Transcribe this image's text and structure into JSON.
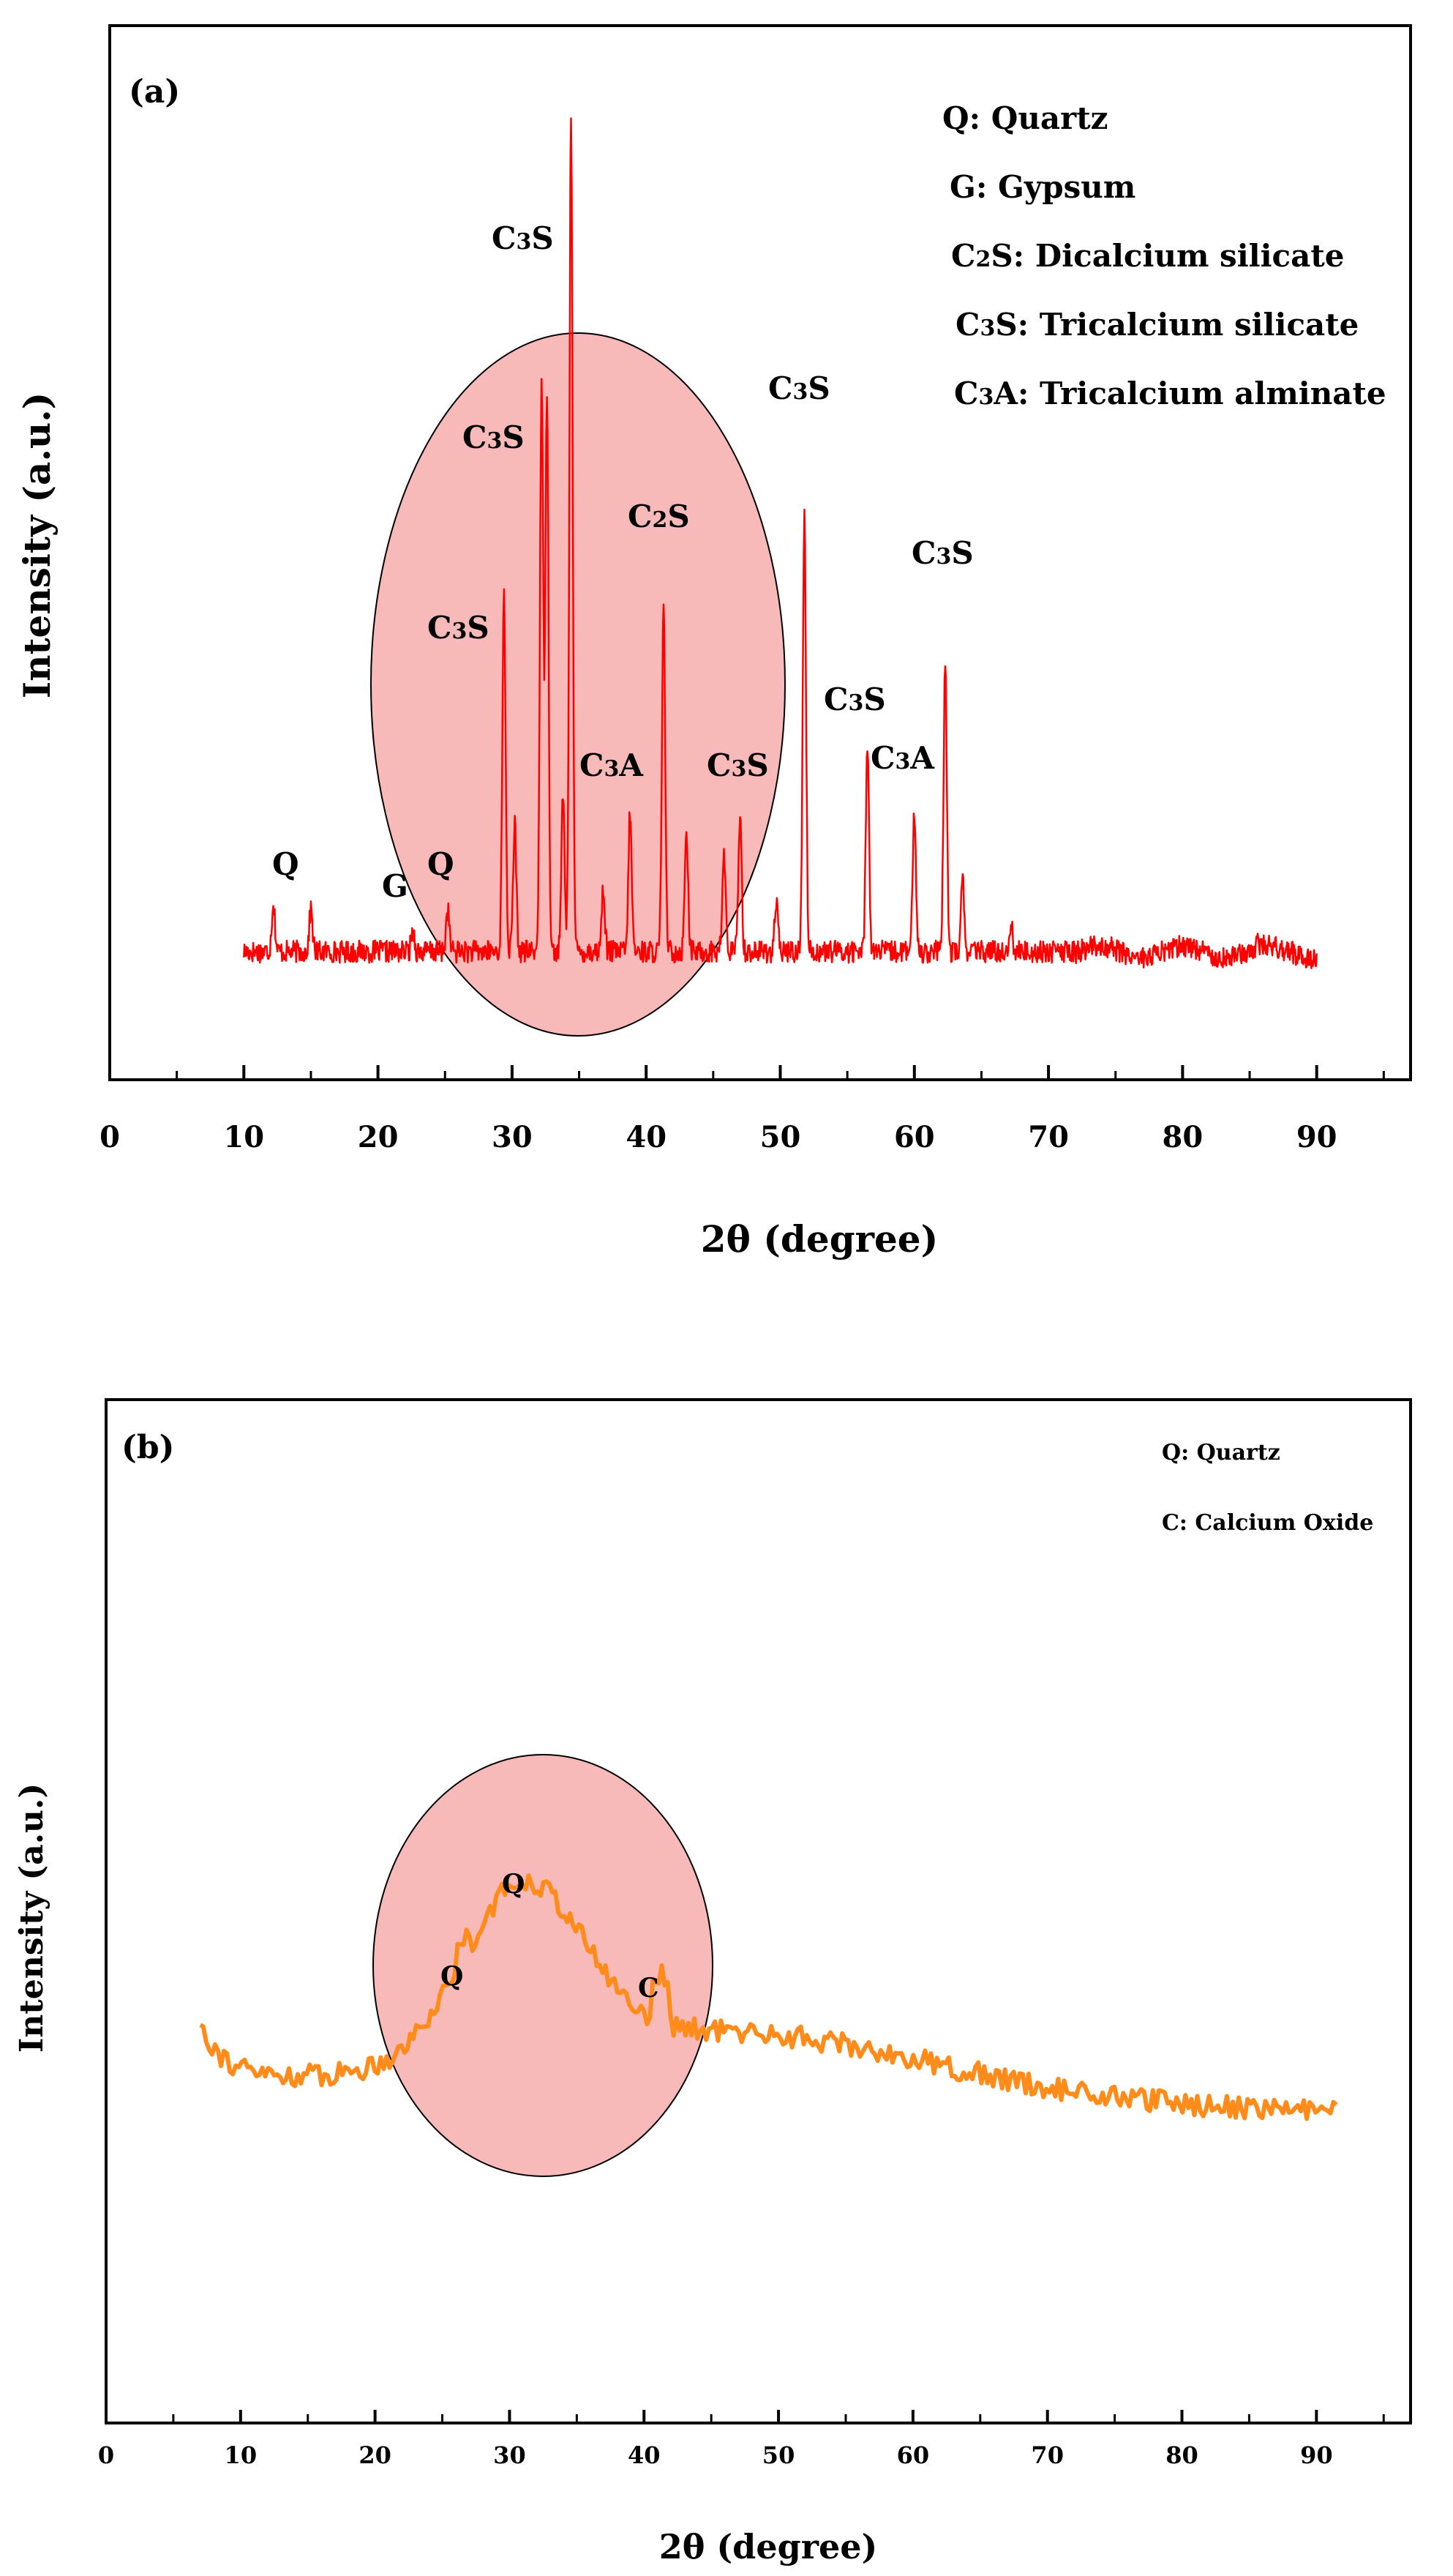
{
  "chart_data": [
    {
      "type": "line",
      "panel_label": "(a)",
      "xlabel": "2θ (degree)",
      "ylabel": "Intensity (a.u.)",
      "xlim": [
        0,
        97
      ],
      "x_ticks": [
        "0",
        "10",
        "20",
        "30",
        "40",
        "50",
        "60",
        "70",
        "80",
        "90"
      ],
      "y_ticks_shown": false,
      "grid": false,
      "legend_position": "top-right",
      "legend": [
        {
          "key": "Q",
          "desc": "Quartz"
        },
        {
          "key": "G",
          "desc": "Gypsum"
        },
        {
          "key": "C2S",
          "desc": "Dicalcium silicate"
        },
        {
          "key": "C3S",
          "desc": "Tricalcium silicate"
        },
        {
          "key": "C3A",
          "desc": "Tricalcium alminate"
        }
      ],
      "series": [
        {
          "color": "#ff0000",
          "x_range": [
            10,
            90
          ],
          "baseline": 3.0,
          "peaks": [
            {
              "x": 12.2,
              "y": 3.7
            },
            {
              "x": 15.0,
              "y": 3.6
            },
            {
              "x": 22.6,
              "y": 3.3
            },
            {
              "x": 25.2,
              "y": 3.6
            },
            {
              "x": 29.4,
              "y": 8.1
            },
            {
              "x": 30.2,
              "y": 4.8
            },
            {
              "x": 32.2,
              "y": 11.1
            },
            {
              "x": 32.6,
              "y": 11.0
            },
            {
              "x": 34.4,
              "y": 15.0
            },
            {
              "x": 33.8,
              "y": 5.2
            },
            {
              "x": 36.8,
              "y": 3.9
            },
            {
              "x": 38.8,
              "y": 5.0
            },
            {
              "x": 41.3,
              "y": 7.9
            },
            {
              "x": 43.0,
              "y": 4.8
            },
            {
              "x": 45.8,
              "y": 4.4
            },
            {
              "x": 47.0,
              "y": 5.0
            },
            {
              "x": 49.7,
              "y": 3.7
            },
            {
              "x": 51.8,
              "y": 9.3
            },
            {
              "x": 56.5,
              "y": 6.0
            },
            {
              "x": 60.0,
              "y": 5.0
            },
            {
              "x": 62.3,
              "y": 7.1
            },
            {
              "x": 63.6,
              "y": 4.0
            },
            {
              "x": 67.2,
              "y": 3.4
            },
            {
              "x": 80.0,
              "y": 3.0
            },
            {
              "x": 85.6,
              "y": 3.1
            }
          ]
        }
      ],
      "annotations": [
        {
          "text": "Q",
          "x": 13.5
        },
        {
          "text": "G",
          "x": 21.6
        },
        {
          "text": "Q",
          "x": 25.5
        },
        {
          "text": "C3S",
          "x": 28.0
        },
        {
          "text": "C3S",
          "x": 29.3
        },
        {
          "text": "C3S",
          "x": 31.5
        },
        {
          "text": "C2S",
          "x": 41.0
        },
        {
          "text": "C3A",
          "x": 38.8
        },
        {
          "text": "C3S",
          "x": 47.5
        },
        {
          "text": "C3S",
          "x": 51.5
        },
        {
          "text": "C3S",
          "x": 56.5
        },
        {
          "text": "C3A",
          "x": 60.0
        },
        {
          "text": "C3S",
          "x": 62.5
        }
      ],
      "highlight_ellipse": {
        "color": "#f8b9b9"
      }
    },
    {
      "type": "line",
      "panel_label": "(b)",
      "xlabel": "2θ (degree)",
      "ylabel": "Intensity (a.u.)",
      "xlim": [
        0,
        97
      ],
      "x_ticks": [
        "0",
        "10",
        "20",
        "30",
        "40",
        "50",
        "60",
        "70",
        "80",
        "90"
      ],
      "y_ticks_shown": false,
      "grid": false,
      "legend_position": "top-right",
      "legend": [
        {
          "key": "Q",
          "desc": "Quartz"
        },
        {
          "key": "C",
          "desc": "Calcium Oxide"
        }
      ],
      "series": [
        {
          "color": "#ff8c1a",
          "x_range": [
            7,
            91.5
          ],
          "hump_center": 31,
          "hump_height": 1.7,
          "peaks": [
            {
              "x": 7.2,
              "y": 5.9
            },
            {
              "x": 26.5,
              "y": 5.4
            },
            {
              "x": 30.8,
              "y": 6.3
            },
            {
              "x": 41.2,
              "y": 5.3
            }
          ]
        }
      ],
      "annotations": [
        {
          "text": "Q",
          "x": 26.5
        },
        {
          "text": "Q",
          "x": 30.8
        },
        {
          "text": "C",
          "x": 41.2
        }
      ],
      "highlight_ellipse": {
        "color": "#f8b9b9"
      }
    }
  ]
}
